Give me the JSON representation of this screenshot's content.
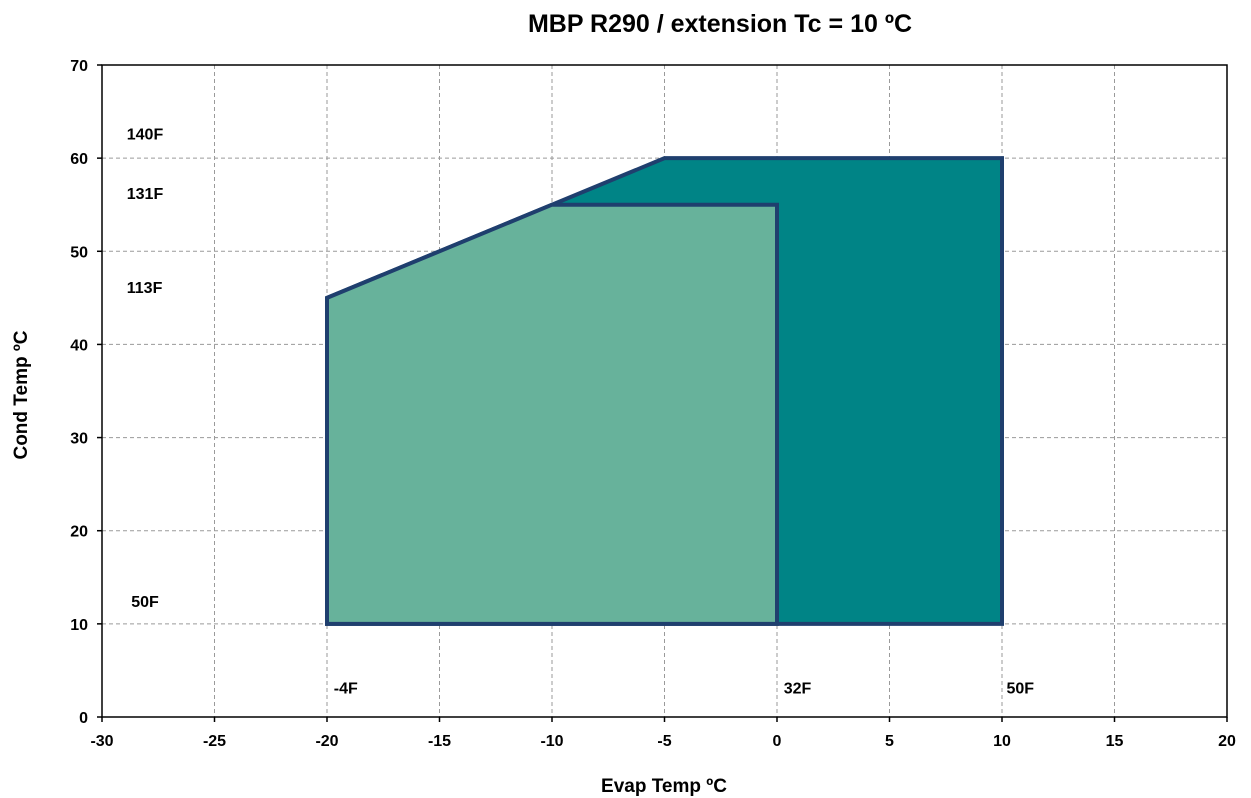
{
  "chart_data": {
    "type": "area",
    "title": "MBP R290 / extension Tc = 10 ºC",
    "xlabel": "Evap Temp ºC",
    "ylabel": "Cond Temp ºC",
    "xlim": [
      -30,
      20
    ],
    "ylim": [
      0,
      70
    ],
    "x_ticks": [
      -30,
      -25,
      -20,
      -15,
      -10,
      -5,
      0,
      5,
      10,
      15,
      20
    ],
    "y_ticks": [
      0,
      10,
      20,
      30,
      40,
      50,
      60,
      70
    ],
    "grid": true,
    "series": [
      {
        "color": "#008486",
        "points": [
          [
            -20,
            10
          ],
          [
            -20,
            45
          ],
          [
            -5,
            60
          ],
          [
            10,
            60
          ],
          [
            10,
            10
          ]
        ]
      },
      {
        "color": "#67b29b",
        "points": [
          [
            -20,
            10
          ],
          [
            -20,
            45
          ],
          [
            -10,
            55
          ],
          [
            0,
            55
          ],
          [
            0,
            10
          ]
        ]
      }
    ],
    "outline_color": "#1f3f6e",
    "annotations": [
      {
        "text": "140F",
        "x": -28.9,
        "y": 62
      },
      {
        "text": "131F",
        "x": -28.9,
        "y": 55.6
      },
      {
        "text": "113F",
        "x": -28.9,
        "y": 45.5
      },
      {
        "text": "50F",
        "x": -28.7,
        "y": 11.8
      },
      {
        "text": "-4F",
        "x": -19.7,
        "y": 2.5
      },
      {
        "text": "32F",
        "x": 0.3,
        "y": 2.5
      },
      {
        "text": "50F",
        "x": 10.2,
        "y": 2.5
      }
    ]
  }
}
